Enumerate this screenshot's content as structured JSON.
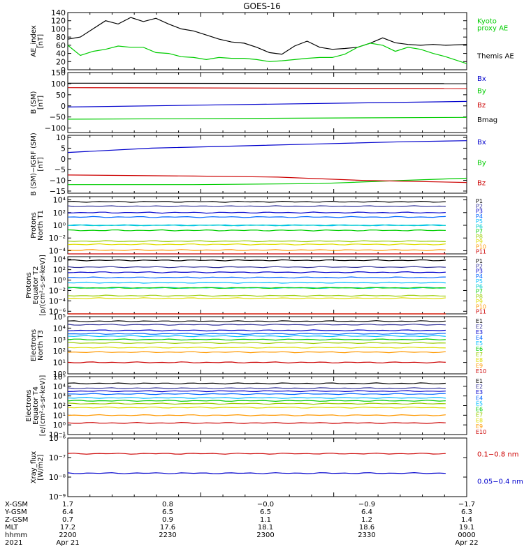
{
  "title": "GOES-16",
  "chart_data": [
    {
      "id": "ae",
      "type": "line",
      "ylabel": [
        "AE_index",
        "[nT]"
      ],
      "ylim": [
        0,
        140
      ],
      "ticks": [
        {
          "v": 0,
          "t": "0"
        },
        {
          "v": 20,
          "t": "20"
        },
        {
          "v": 40,
          "t": "40"
        },
        {
          "v": 60,
          "t": "60"
        },
        {
          "v": 80,
          "t": "80"
        },
        {
          "v": 100,
          "t": "100"
        },
        {
          "v": 120,
          "t": "120"
        },
        {
          "v": 140,
          "t": "140"
        }
      ],
      "series": [
        {
          "name": "Themis AE",
          "color": "#000000",
          "x": [
            0,
            3,
            6,
            9,
            12,
            15,
            18,
            21,
            24,
            27,
            30,
            33,
            36,
            39,
            42,
            45,
            48,
            51,
            54,
            57,
            60,
            63,
            66,
            69,
            72,
            75,
            78,
            81,
            84,
            87,
            90,
            95
          ],
          "values": [
            75,
            80,
            100,
            120,
            112,
            128,
            118,
            126,
            112,
            100,
            95,
            85,
            75,
            68,
            65,
            55,
            42,
            38,
            58,
            70,
            55,
            50,
            52,
            55,
            65,
            78,
            66,
            62,
            60,
            62,
            60,
            62
          ]
        },
        {
          "name": "Kyoto proxy AE",
          "color": "#00cc00",
          "x": [
            0,
            3,
            6,
            9,
            12,
            15,
            18,
            21,
            24,
            27,
            30,
            33,
            36,
            39,
            42,
            45,
            48,
            51,
            54,
            57,
            60,
            63,
            66,
            69,
            72,
            75,
            78,
            81,
            84,
            87,
            90,
            95
          ],
          "values": [
            60,
            35,
            45,
            50,
            58,
            55,
            55,
            42,
            40,
            32,
            30,
            25,
            30,
            28,
            28,
            25,
            20,
            22,
            25,
            28,
            30,
            30,
            38,
            55,
            65,
            60,
            45,
            55,
            50,
            40,
            32,
            15
          ]
        }
      ],
      "legend": [
        {
          "t": "Kyoto",
          "c": "#00cc00",
          "v": 120
        },
        {
          "t": "proxy AE",
          "c": "#00cc00",
          "v": 103
        },
        {
          "t": "Themis AE",
          "c": "#000000",
          "v": 35
        }
      ]
    },
    {
      "id": "bsm",
      "type": "line",
      "ylabel": [
        "B (SM)",
        "[nT]"
      ],
      "ylim": [
        -120,
        150
      ],
      "ticks": [
        {
          "v": -100,
          "t": "−100"
        },
        {
          "v": -50,
          "t": "−50"
        },
        {
          "v": 0,
          "t": "0"
        },
        {
          "v": 50,
          "t": "50"
        },
        {
          "v": 100,
          "t": "100"
        },
        {
          "v": 150,
          "t": "150"
        }
      ],
      "series": [
        {
          "name": "Bx",
          "color": "#0000cc",
          "x": [
            0,
            95
          ],
          "values": [
            -5,
            20
          ]
        },
        {
          "name": "By",
          "color": "#00cc00",
          "x": [
            0,
            95
          ],
          "values": [
            -60,
            -52
          ]
        },
        {
          "name": "Bz",
          "color": "#cc0000",
          "x": [
            0,
            95
          ],
          "values": [
            82,
            78
          ]
        },
        {
          "name": "Bmag",
          "color": "#000000",
          "x": [
            0,
            95
          ],
          "values": [
            102,
            100
          ]
        }
      ],
      "legend": [
        {
          "t": "Bx",
          "c": "#0000cc",
          "v": 125
        },
        {
          "t": "By",
          "c": "#00cc00",
          "v": 70
        },
        {
          "t": "Bz",
          "c": "#cc0000",
          "v": 5
        },
        {
          "t": "Bmag",
          "c": "#000000",
          "v": -60
        }
      ]
    },
    {
      "id": "bigrf",
      "type": "line",
      "ylabel": [
        "B (SM)−IGRF (SM)",
        "[nT]"
      ],
      "ylim": [
        -16,
        11
      ],
      "ticks": [
        {
          "v": -15,
          "t": "−15"
        },
        {
          "v": -10,
          "t": "−10"
        },
        {
          "v": -5,
          "t": "−5"
        },
        {
          "v": 0,
          "t": "0"
        },
        {
          "v": 5,
          "t": "5"
        },
        {
          "v": 10,
          "t": "10"
        }
      ],
      "series": [
        {
          "name": "Bx",
          "color": "#0000cc",
          "x": [
            0,
            20,
            40,
            60,
            80,
            95
          ],
          "values": [
            3,
            5,
            6,
            7,
            8,
            8.5
          ]
        },
        {
          "name": "By",
          "color": "#00cc00",
          "x": [
            0,
            30,
            60,
            80,
            95
          ],
          "values": [
            -12,
            -12,
            -11.5,
            -10,
            -9
          ]
        },
        {
          "name": "Bz",
          "color": "#cc0000",
          "x": [
            0,
            30,
            50,
            70,
            95
          ],
          "values": [
            -7.5,
            -8,
            -8.5,
            -10,
            -11
          ]
        }
      ],
      "legend": [
        {
          "t": "Bx",
          "c": "#0000cc",
          "v": 8
        },
        {
          "t": "By",
          "c": "#00cc00",
          "v": -1.5
        },
        {
          "t": "Bz",
          "c": "#cc0000",
          "v": -11
        }
      ]
    },
    {
      "id": "pnorth",
      "type": "line",
      "log": true,
      "ylabel": [
        "Protons",
        "North T1"
      ],
      "ylim": [
        -4.5,
        4.5
      ],
      "ticks": [
        {
          "v": -4,
          "t": "10⁻⁴"
        },
        {
          "v": -2,
          "t": "10⁻²"
        },
        {
          "v": 0,
          "t": "10⁰"
        },
        {
          "v": 2,
          "t": "10²"
        },
        {
          "v": 4,
          "t": "10⁴"
        }
      ],
      "series": [
        {
          "name": "P1",
          "color": "#000000",
          "values": [
            3.7
          ]
        },
        {
          "name": "P2",
          "color": "#333399",
          "values": [
            3.0
          ]
        },
        {
          "name": "P3",
          "color": "#0000cc",
          "values": [
            2.0
          ]
        },
        {
          "name": "P4",
          "color": "#0066ff",
          "values": [
            1.3
          ]
        },
        {
          "name": "P5",
          "color": "#00bbff",
          "values": [
            0.0
          ]
        },
        {
          "name": "P6",
          "color": "#00cccc",
          "values": [
            0.0
          ]
        },
        {
          "name": "P7",
          "color": "#00cc00",
          "values": [
            -0.8
          ]
        },
        {
          "name": "P8",
          "color": "#99cc00",
          "values": [
            -2.5
          ]
        },
        {
          "name": "P9",
          "color": "#dddd00",
          "values": [
            -3.0
          ]
        },
        {
          "name": "P10",
          "color": "#ff9900",
          "values": [
            -3.9
          ]
        },
        {
          "name": "P11",
          "color": "#cc0000",
          "values": [
            -4.6
          ]
        }
      ]
    },
    {
      "id": "peq",
      "type": "line",
      "log": true,
      "ylabel": [
        "Protons",
        "Equator T2",
        "[p/(cm²-s-sr-keV)]"
      ],
      "ylim": [
        -6.5,
        4.5
      ],
      "ticks": [
        {
          "v": -6,
          "t": "10⁻⁶"
        },
        {
          "v": -4,
          "t": "10⁻⁴"
        },
        {
          "v": -2,
          "t": "10⁻²"
        },
        {
          "v": 0,
          "t": "10⁰"
        },
        {
          "v": 2,
          "t": "10²"
        },
        {
          "v": 4,
          "t": "10⁴"
        }
      ],
      "series": [
        {
          "name": "P1",
          "color": "#000000",
          "values": [
            3.8
          ]
        },
        {
          "name": "P2",
          "color": "#333399",
          "values": [
            2.5
          ]
        },
        {
          "name": "P3",
          "color": "#0000cc",
          "values": [
            1.5
          ]
        },
        {
          "name": "P4",
          "color": "#0066ff",
          "values": [
            0.5
          ]
        },
        {
          "name": "P5",
          "color": "#00bbff",
          "values": [
            -0.5
          ]
        },
        {
          "name": "P6",
          "color": "#00cccc",
          "values": [
            -1.5
          ]
        },
        {
          "name": "P7",
          "color": "#00cc00",
          "values": [
            -1.5
          ]
        },
        {
          "name": "P8",
          "color": "#99cc00",
          "values": [
            -3.0
          ]
        },
        {
          "name": "P9",
          "color": "#dddd00",
          "values": [
            -3.5
          ]
        },
        {
          "name": "P10",
          "color": "#ff9900",
          "values": [
            -6.8
          ]
        },
        {
          "name": "P11",
          "color": "#cc0000",
          "values": [
            -6.8
          ]
        }
      ]
    },
    {
      "id": "enorth",
      "type": "line",
      "log": true,
      "ylabel": [
        "Electrons",
        "North T3"
      ],
      "ylim": [
        0,
        5
      ],
      "ticks": [
        {
          "v": 0,
          "t": "10⁰"
        },
        {
          "v": 1,
          "t": "10¹"
        },
        {
          "v": 2,
          "t": "10²"
        },
        {
          "v": 3,
          "t": "10³"
        },
        {
          "v": 4,
          "t": "10⁴"
        },
        {
          "v": 5,
          "t": "10⁵"
        }
      ],
      "series": [
        {
          "name": "E1",
          "color": "#000000",
          "values": [
            4.6
          ]
        },
        {
          "name": "E2",
          "color": "#333399",
          "values": [
            4.3
          ]
        },
        {
          "name": "E3",
          "color": "#0000cc",
          "values": [
            3.8
          ]
        },
        {
          "name": "E4",
          "color": "#0066ff",
          "values": [
            3.5
          ]
        },
        {
          "name": "E5",
          "color": "#00bbff",
          "values": [
            3.3
          ]
        },
        {
          "name": "E6",
          "color": "#00cc00",
          "values": [
            3.0
          ]
        },
        {
          "name": "E7",
          "color": "#99cc00",
          "values": [
            2.7
          ]
        },
        {
          "name": "E8",
          "color": "#dddd00",
          "values": [
            2.3
          ]
        },
        {
          "name": "E9",
          "color": "#ff9900",
          "values": [
            1.9
          ]
        },
        {
          "name": "E10",
          "color": "#cc0000",
          "values": [
            1.0
          ]
        }
      ]
    },
    {
      "id": "eeq",
      "type": "line",
      "log": true,
      "ylabel": [
        "Electrons",
        "Equator T4",
        "[e/(cm²-s-sr-keV)]"
      ],
      "ylim": [
        -1,
        5
      ],
      "ticks": [
        {
          "v": -1,
          "t": "10⁻¹"
        },
        {
          "v": 0,
          "t": "10⁰"
        },
        {
          "v": 1,
          "t": "10¹"
        },
        {
          "v": 2,
          "t": "10²"
        },
        {
          "v": 3,
          "t": "10³"
        },
        {
          "v": 4,
          "t": "10⁴"
        },
        {
          "v": 5,
          "t": "10⁵"
        }
      ],
      "series": [
        {
          "name": "E1",
          "color": "#000000",
          "values": [
            4.3
          ]
        },
        {
          "name": "E2",
          "color": "#333399",
          "values": [
            3.8
          ]
        },
        {
          "name": "E3",
          "color": "#0000cc",
          "values": [
            3.5
          ]
        },
        {
          "name": "E4",
          "color": "#0066ff",
          "values": [
            3.2
          ]
        },
        {
          "name": "E5",
          "color": "#00bbff",
          "values": [
            2.8
          ]
        },
        {
          "name": "E6",
          "color": "#00cc00",
          "values": [
            2.5
          ]
        },
        {
          "name": "E7",
          "color": "#99cc00",
          "values": [
            2.2
          ]
        },
        {
          "name": "E8",
          "color": "#dddd00",
          "values": [
            1.8
          ]
        },
        {
          "name": "E9",
          "color": "#ff9900",
          "values": [
            1.0
          ]
        },
        {
          "name": "E10",
          "color": "#cc0000",
          "values": [
            0.2
          ]
        }
      ]
    },
    {
      "id": "xray",
      "type": "line",
      "log": true,
      "ylabel": [
        "Xray_flux",
        "[W/m2]"
      ],
      "ylim": [
        -9,
        -6
      ],
      "ticks": [
        {
          "v": -9,
          "t": "10⁻⁹"
        },
        {
          "v": -8,
          "t": "10⁻⁸"
        },
        {
          "v": -7,
          "t": "10⁻⁷"
        },
        {
          "v": -6,
          "t": "10⁻⁶"
        }
      ],
      "series": [
        {
          "name": "0.1−0.8 nm",
          "color": "#cc0000",
          "values": [
            -6.8
          ]
        },
        {
          "name": "0.05−0.4 nm",
          "color": "#0000cc",
          "values": [
            -7.8
          ]
        }
      ],
      "legend": [
        {
          "t": "0.1−0.8 nm",
          "c": "#cc0000",
          "v": -6.8
        },
        {
          "t": "0.05−0.4 nm",
          "c": "#0000cc",
          "v": -8.2
        }
      ]
    }
  ],
  "xaxis": {
    "rows": [
      {
        "label": "X-GSM",
        "values": [
          "1.7",
          "0.8",
          "−0.0",
          "−0.9",
          "−1.7"
        ]
      },
      {
        "label": "Y-GSM",
        "values": [
          "6.4",
          "6.5",
          "6.5",
          "6.4",
          "6.3"
        ]
      },
      {
        "label": "Z-GSM",
        "values": [
          "0.7",
          "0.9",
          "1.1",
          "1.2",
          "1.4"
        ]
      },
      {
        "label": "MLT",
        "values": [
          "17.2",
          "17.6",
          "18.1",
          "18.6",
          "19.1"
        ]
      },
      {
        "label": "hhmm",
        "values": [
          "2200",
          "2230",
          "2300",
          "2330",
          "0000"
        ]
      },
      {
        "label": "2021",
        "values": [
          "Apr 21",
          "",
          "",
          "",
          "Apr 22"
        ]
      }
    ]
  }
}
